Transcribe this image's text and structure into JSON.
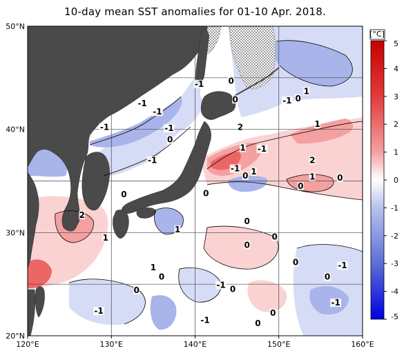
{
  "title": "10-day mean SST anomalies for 01-10 Apr. 2018.",
  "colors": {
    "land": "#4a4a4a",
    "ocean_base": "#ffffff",
    "pos_1": "#fbd2d2",
    "pos_2": "#f5a0a0",
    "pos_3": "#ec6666",
    "neg_1": "#d6dcf5",
    "neg_2": "#a9b4ea",
    "neg_3": "#6e7edc",
    "grid": "#444444",
    "ice": "#bdbdbd"
  },
  "map": {
    "lon_range": [
      120,
      160
    ],
    "lat_range": [
      20,
      50
    ],
    "lon_ticks": [
      "120°E",
      "130°E",
      "140°E",
      "150°E",
      "160°E"
    ],
    "lat_ticks": [
      "50°N",
      "40°N",
      "30°N",
      "20°N"
    ],
    "contour_labels": [
      {
        "text": "-1",
        "lon": 135.5,
        "lat": 41.5
      },
      {
        "text": "-1",
        "lon": 133.7,
        "lat": 42.3
      },
      {
        "text": "-1",
        "lon": 136.9,
        "lat": 39.9
      },
      {
        "text": "0",
        "lon": 137.0,
        "lat": 38.8
      },
      {
        "text": "-1",
        "lon": 140.5,
        "lat": 44.2
      },
      {
        "text": "-1",
        "lon": 129.2,
        "lat": 40.0
      },
      {
        "text": "-1",
        "lon": 134.9,
        "lat": 36.8
      },
      {
        "text": "0",
        "lon": 131.5,
        "lat": 33.5
      },
      {
        "text": "2",
        "lon": 126.5,
        "lat": 31.5
      },
      {
        "text": "1",
        "lon": 129.3,
        "lat": 29.3
      },
      {
        "text": "1",
        "lon": 137.9,
        "lat": 30.1
      },
      {
        "text": "0",
        "lon": 141.3,
        "lat": 33.6
      },
      {
        "text": "1",
        "lon": 135.0,
        "lat": 26.4
      },
      {
        "text": "0",
        "lon": 136.0,
        "lat": 25.5
      },
      {
        "text": "-1",
        "lon": 143.1,
        "lat": 24.7
      },
      {
        "text": "0",
        "lon": 144.5,
        "lat": 24.3
      },
      {
        "text": "0",
        "lon": 133.0,
        "lat": 24.2
      },
      {
        "text": "-1",
        "lon": 128.5,
        "lat": 22.2
      },
      {
        "text": "-1",
        "lon": 141.2,
        "lat": 21.3
      },
      {
        "text": "0",
        "lon": 146.2,
        "lat": 28.6
      },
      {
        "text": "0",
        "lon": 146.2,
        "lat": 30.9
      },
      {
        "text": "0",
        "lon": 149.5,
        "lat": 29.4
      },
      {
        "text": "0",
        "lon": 152.0,
        "lat": 26.9
      },
      {
        "text": "0",
        "lon": 155.8,
        "lat": 25.5
      },
      {
        "text": "-1",
        "lon": 157.6,
        "lat": 26.6
      },
      {
        "text": "-1",
        "lon": 156.8,
        "lat": 23.0
      },
      {
        "text": "0",
        "lon": 149.3,
        "lat": 22.0
      },
      {
        "text": "0",
        "lon": 147.5,
        "lat": 21.0
      },
      {
        "text": "0",
        "lon": 144.3,
        "lat": 44.5
      },
      {
        "text": "0",
        "lon": 144.8,
        "lat": 42.7
      },
      {
        "text": "2",
        "lon": 145.4,
        "lat": 40.0
      },
      {
        "text": "1",
        "lon": 145.7,
        "lat": 38.0
      },
      {
        "text": "-1",
        "lon": 148.0,
        "lat": 37.9
      },
      {
        "text": "-1",
        "lon": 144.8,
        "lat": 36.0
      },
      {
        "text": "0",
        "lon": 146.0,
        "lat": 35.3
      },
      {
        "text": "1",
        "lon": 147.0,
        "lat": 35.7
      },
      {
        "text": "-1",
        "lon": 151.0,
        "lat": 42.6
      },
      {
        "text": "0",
        "lon": 152.3,
        "lat": 42.8
      },
      {
        "text": "1",
        "lon": 153.3,
        "lat": 43.5
      },
      {
        "text": "1",
        "lon": 154.6,
        "lat": 40.3
      },
      {
        "text": "2",
        "lon": 154.0,
        "lat": 36.8
      },
      {
        "text": "1",
        "lon": 154.0,
        "lat": 35.2
      },
      {
        "text": "0",
        "lon": 152.6,
        "lat": 34.3
      },
      {
        "text": "0",
        "lon": 157.3,
        "lat": 35.1
      }
    ]
  },
  "colorbar": {
    "unit": "[°C]",
    "min": -5,
    "max": 5,
    "tick_labels": [
      "5",
      "4",
      "3",
      "2",
      "1",
      "0",
      "-1",
      "-2",
      "-3",
      "-4",
      "-5"
    ]
  }
}
